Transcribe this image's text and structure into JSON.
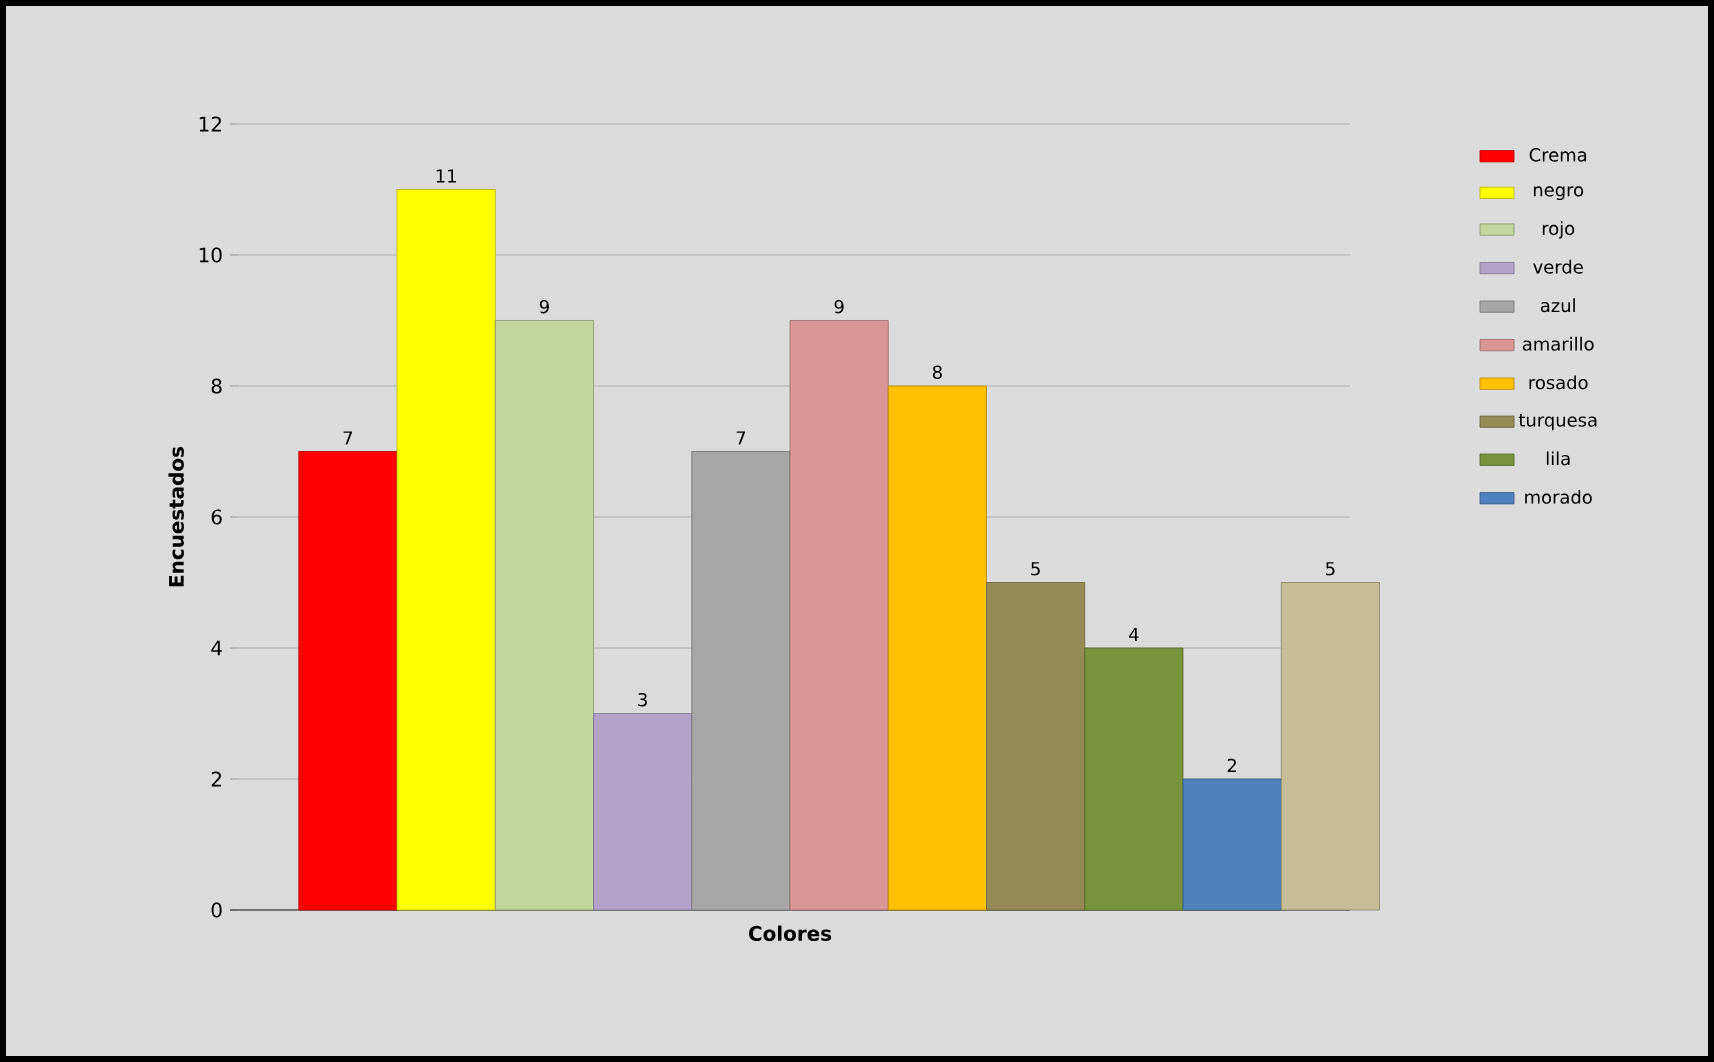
{
  "chart_data": {
    "type": "bar",
    "xlabel": "Colores",
    "ylabel": "Encuestados",
    "categories": [
      null
    ],
    "series": [
      {
        "name": "Crema",
        "color": "#ff0000",
        "values": [
          7
        ]
      },
      {
        "name": "negro",
        "color": "#ffff00",
        "values": [
          11
        ]
      },
      {
        "name": "rojo",
        "color": "#c3d69b",
        "values": [
          9
        ]
      },
      {
        "name": "verde",
        "color": "#b3a2c7",
        "values": [
          3
        ]
      },
      {
        "name": "azul",
        "color": "#a6a6a6",
        "values": [
          7
        ]
      },
      {
        "name": "amarillo",
        "color": "#d99694",
        "values": [
          9
        ]
      },
      {
        "name": "rosado",
        "color": "#ffc000",
        "values": [
          8
        ]
      },
      {
        "name": "turquesa",
        "color": "#948a54",
        "values": [
          5
        ]
      },
      {
        "name": "lila",
        "color": "#77933c",
        "values": [
          4
        ]
      },
      {
        "name": "morado",
        "color": "#4f81bd",
        "values": [
          2
        ]
      },
      {
        "color": "#c4bd97",
        "values": [
          5
        ]
      }
    ],
    "ylim": [
      0,
      12
    ],
    "yticks": [
      0,
      2,
      4,
      6,
      8,
      10,
      12
    ],
    "grid": "y",
    "legend": "right",
    "data_labels": true
  }
}
